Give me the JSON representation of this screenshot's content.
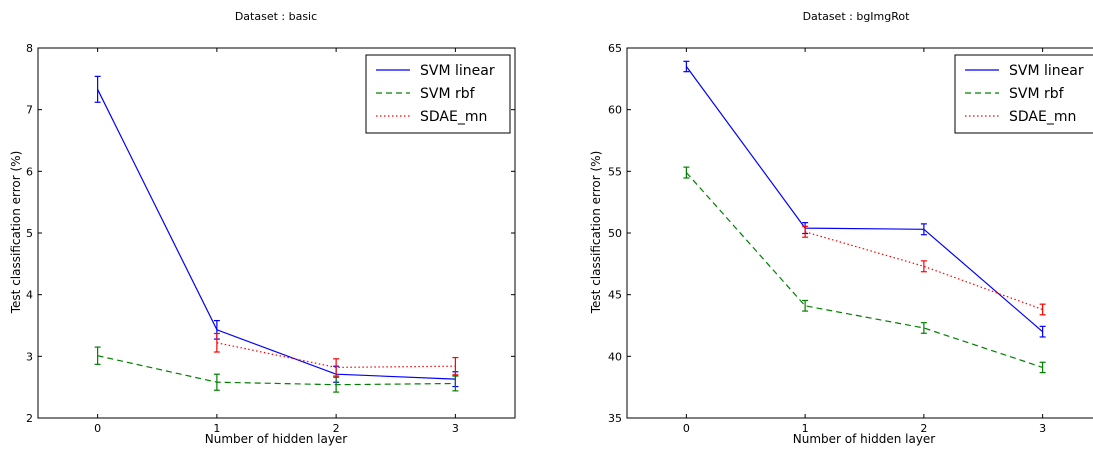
{
  "chart_data": [
    {
      "type": "line",
      "title": "Dataset : basic",
      "xlabel": "Number of hidden layer",
      "ylabel": "Test classification error (%)",
      "x": [
        0,
        1,
        2,
        3
      ],
      "xticks": [
        "0",
        "1",
        "2",
        "3"
      ],
      "yticks": [
        "2",
        "3",
        "4",
        "5",
        "6",
        "7",
        "8"
      ],
      "xlim": [
        -0.5,
        3.5
      ],
      "ylim": [
        2,
        8
      ],
      "legend_position": "top-right",
      "series": [
        {
          "name": "SVM linear",
          "x": [
            0,
            1,
            2,
            3
          ],
          "values": [
            7.33,
            3.43,
            2.71,
            2.63
          ],
          "err": [
            0.21,
            0.15,
            0.13,
            0.12
          ],
          "color": "#0000ff",
          "style": "solid"
        },
        {
          "name": "SVM rbf",
          "x": [
            0,
            1,
            2,
            3
          ],
          "values": [
            3.01,
            2.58,
            2.54,
            2.56
          ],
          "err": [
            0.14,
            0.13,
            0.12,
            0.12
          ],
          "color": "#008000",
          "style": "dashed"
        },
        {
          "name": "SDAE_mn",
          "x": [
            1,
            2,
            3
          ],
          "values": [
            3.22,
            2.82,
            2.84
          ],
          "err": [
            0.15,
            0.14,
            0.14
          ],
          "color": "#ff0000",
          "style": "dotted"
        }
      ]
    },
    {
      "type": "line",
      "title": "Dataset : bgImgRot",
      "xlabel": "Number of hidden layer",
      "ylabel": "Test classification error (%)",
      "x": [
        0,
        1,
        2,
        3
      ],
      "xticks": [
        "0",
        "1",
        "2",
        "3"
      ],
      "yticks": [
        "35",
        "40",
        "45",
        "50",
        "55",
        "60",
        "65"
      ],
      "xlim": [
        -0.5,
        3.5
      ],
      "ylim": [
        35,
        65
      ],
      "legend_position": "top-right",
      "series": [
        {
          "name": "SVM linear",
          "x": [
            0,
            1,
            2,
            3
          ],
          "values": [
            63.5,
            50.4,
            50.3,
            42.0
          ],
          "err": [
            0.42,
            0.44,
            0.44,
            0.43
          ],
          "color": "#0000ff",
          "style": "solid"
        },
        {
          "name": "SVM rbf",
          "x": [
            0,
            1,
            2,
            3
          ],
          "values": [
            54.9,
            44.1,
            42.3,
            39.1
          ],
          "err": [
            0.44,
            0.43,
            0.43,
            0.42
          ],
          "color": "#008000",
          "style": "dashed"
        },
        {
          "name": "SDAE_mn",
          "x": [
            1,
            2,
            3
          ],
          "values": [
            50.1,
            47.3,
            43.8
          ],
          "err": [
            0.44,
            0.44,
            0.43
          ],
          "color": "#ff0000",
          "style": "dotted"
        }
      ]
    }
  ]
}
